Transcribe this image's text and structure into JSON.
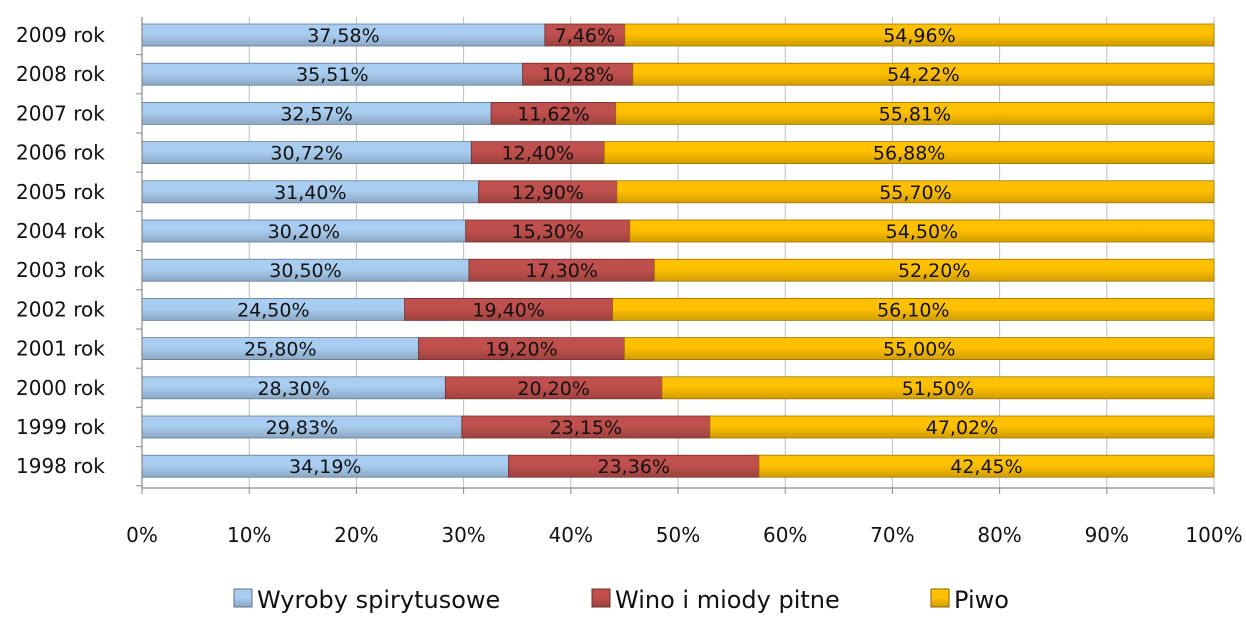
{
  "chart_data": {
    "type": "bar",
    "orientation": "horizontal",
    "stacked": "percent",
    "categories": [
      "2009 rok",
      "2008 rok",
      "2007 rok",
      "2006 rok",
      "2005 rok",
      "2004 rok",
      "2003 rok",
      "2002 rok",
      "2001 rok",
      "2000 rok",
      "1999 rok",
      "1998 rok"
    ],
    "series": [
      {
        "name": "Wyroby spirytusowe",
        "color": "#a9cdf0",
        "values": [
          37.58,
          35.51,
          32.57,
          30.72,
          31.4,
          30.2,
          30.5,
          24.5,
          25.8,
          28.3,
          29.83,
          34.19
        ],
        "labels": [
          "37,58%",
          "35,51%",
          "32,57%",
          "30,72%",
          "31,40%",
          "30,20%",
          "30,50%",
          "24,50%",
          "25,80%",
          "28,30%",
          "29,83%",
          "34,19%"
        ]
      },
      {
        "name": "Wino i miody pitne",
        "color": "#c0504d",
        "values": [
          7.46,
          10.28,
          11.62,
          12.4,
          12.9,
          15.3,
          17.3,
          19.4,
          19.2,
          20.2,
          23.15,
          23.36
        ],
        "labels": [
          "7,46%",
          "10,28%",
          "11,62%",
          "12,40%",
          "12,90%",
          "15,30%",
          "17,30%",
          "19,40%",
          "19,20%",
          "20,20%",
          "23,15%",
          "23,36%"
        ]
      },
      {
        "name": "Piwo",
        "color": "#ffc000",
        "values": [
          54.96,
          54.22,
          55.81,
          56.88,
          55.7,
          54.5,
          52.2,
          56.1,
          55.0,
          51.5,
          47.02,
          42.45
        ],
        "labels": [
          "54,96%",
          "54,22%",
          "55,81%",
          "56,88%",
          "55,70%",
          "54,50%",
          "52,20%",
          "56,10%",
          "55,00%",
          "51,50%",
          "47,02%",
          "42,45%"
        ]
      }
    ],
    "x_ticks": [
      "0%",
      "10%",
      "20%",
      "30%",
      "40%",
      "50%",
      "60%",
      "70%",
      "80%",
      "90%",
      "100%"
    ],
    "xlim": [
      0,
      100
    ],
    "grid": "vertical",
    "legend_position": "bottom"
  }
}
